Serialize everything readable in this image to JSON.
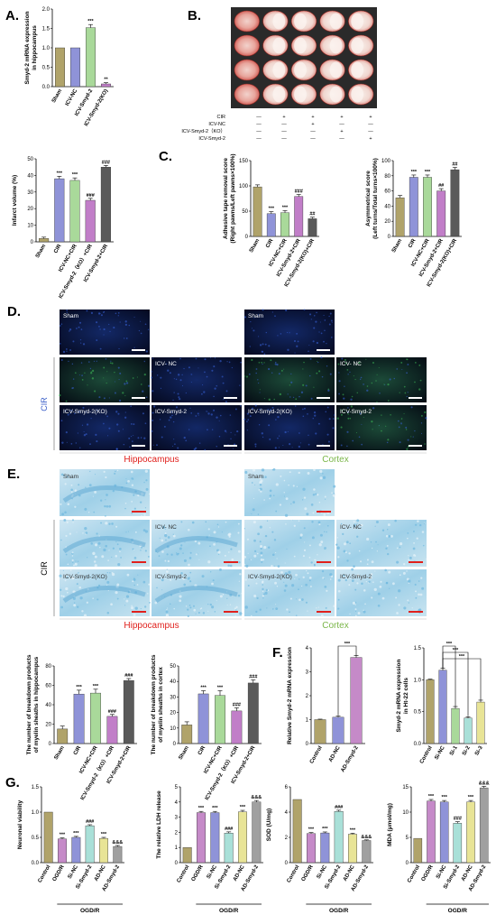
{
  "panels": {
    "A": {
      "letter": "A."
    },
    "B": {
      "letter": "B.",
      "treatment_rows": [
        "CIR",
        "ICV-NC",
        "ICV-Smyd-2（KO）",
        "ICV-Smyd-2"
      ],
      "treatment_marks": [
        [
          "—",
          "+",
          "+",
          "+",
          "+"
        ],
        [
          "—",
          "—",
          "+",
          "—",
          "—"
        ],
        [
          "—",
          "—",
          "—",
          "+",
          "—"
        ],
        [
          "—",
          "—",
          "—",
          "—",
          "+"
        ]
      ]
    },
    "C": {
      "letter": "C."
    },
    "D": {
      "letter": "D.",
      "labels": {
        "sham": "Sham",
        "cir": "CIR",
        "icv_nc": "ICV- NC",
        "icv_ko": "ICV-Smyd-2(KO)",
        "icv_smyd2": "ICV-Smyd-2"
      },
      "region_hippocampus": "Hippocampus",
      "region_cortex": "Cortex",
      "side_label": "CIR"
    },
    "E": {
      "letter": "E.",
      "labels": {
        "sham": "Sham",
        "cir": "CIR",
        "icv_nc": "ICV- NC",
        "icv_ko": "ICV-Smyd-2(KO)",
        "icv_smyd2": "ICV-Smyd-2"
      },
      "region_hippocampus": "Hippocampus",
      "region_cortex": "Cortex",
      "side_label": "CIR"
    },
    "F": {
      "letter": "F."
    },
    "G": {
      "letter": "G.",
      "group_label": "OGD/R"
    }
  },
  "colors": {
    "sham": "#b0a36a",
    "cir": "#8f93d8",
    "nc": "#a9d99a",
    "ko": "#c17ec8",
    "smyd": "#5a5a5a",
    "control": "#b0a36a",
    "ogdr": "#c58ac8",
    "sinc": "#8f93d8",
    "si": "#a9e0d8",
    "adnc": "#e8e496",
    "adsmyd": "#a0a0a0",
    "region_red": "#e0201c",
    "region_green": "#7ab648",
    "side_blue": "#3a5fc8"
  },
  "chart_data": [
    {
      "id": "A1",
      "type": "bar",
      "ylabel": "Smyd-2 mRNA expression in hippocampus",
      "categories": [
        "Sham",
        "ICV-NC",
        "ICV-Smyd-2",
        "ICV-Smyd-2(KO)"
      ],
      "values": [
        1.0,
        1.0,
        1.52,
        0.07
      ],
      "errors": [
        0,
        0,
        0.08,
        0.03
      ],
      "ylim": [
        0,
        2.0
      ],
      "yticks": [
        "0.0",
        "0.5",
        "1.0",
        "1.5",
        "2.0"
      ],
      "sig": [
        "",
        "",
        "***",
        "**"
      ],
      "colors": [
        "#b0a36a",
        "#8f93d8",
        "#a9d99a",
        "#c17ec8"
      ]
    },
    {
      "id": "B1",
      "type": "bar",
      "ylabel": "Infarct volume (%)",
      "categories": [
        "Sham",
        "CIR",
        "ICV-NC+CIR",
        "ICV-Smyd-2（KO）+CIR",
        "ICV-Smyd-2+CIR"
      ],
      "values": [
        2,
        38,
        37,
        25,
        45
      ],
      "errors": [
        0.8,
        1.5,
        1.5,
        1.2,
        1.0
      ],
      "ylim": [
        0,
        50
      ],
      "yticks": [
        "0",
        "10",
        "20",
        "30",
        "40",
        "50"
      ],
      "sig": [
        "",
        "***",
        "***",
        "###",
        "###"
      ],
      "colors": [
        "#b0a36a",
        "#8f93d8",
        "#a9d99a",
        "#c17ec8",
        "#5a5a5a"
      ]
    },
    {
      "id": "C1",
      "type": "bar",
      "ylabel": "Adhesive tape removal score (Right pawns/Left pawns×100%)",
      "categories": [
        "Sham",
        "CIR",
        "ICV-NC+CIR",
        "ICV-Smyd-2+CIR",
        "ICV-Smyd-2(KO)+CIR"
      ],
      "values": [
        98,
        45,
        47,
        79,
        35
      ],
      "errors": [
        4,
        4,
        4,
        4,
        3
      ],
      "ylim": [
        0,
        150
      ],
      "yticks": [
        "0",
        "50",
        "100",
        "150"
      ],
      "sig": [
        "",
        "***",
        "***",
        "###",
        "##"
      ],
      "colors": [
        "#b0a36a",
        "#8f93d8",
        "#a9d99a",
        "#c17ec8",
        "#5a5a5a"
      ]
    },
    {
      "id": "C2",
      "type": "bar",
      "ylabel": "Asymmetrical score (Left turns/Total turns×100%)",
      "categories": [
        "Sham",
        "CIR",
        "ICV-NC+CIR",
        "ICV-Smyd-2+CIR",
        "ICV-Smyd-2(KO)+CIR"
      ],
      "values": [
        51,
        78,
        78,
        60,
        88
      ],
      "errors": [
        3,
        3,
        3,
        3,
        3
      ],
      "ylim": [
        0,
        100
      ],
      "yticks": [
        "0",
        "20",
        "40",
        "60",
        "80",
        "100"
      ],
      "sig": [
        "",
        "***",
        "***",
        "##",
        "##"
      ],
      "colors": [
        "#b0a36a",
        "#8f93d8",
        "#a9d99a",
        "#c17ec8",
        "#5a5a5a"
      ]
    },
    {
      "id": "E1",
      "type": "bar",
      "ylabel": "The number of breakdown products of myelin sheaths in hippocampus",
      "categories": [
        "Sham",
        "CIR",
        "ICV-NC+CIR",
        "ICV-Smyd-2（KO）+CIR",
        "ICV-Smyd-2+CIR"
      ],
      "values": [
        15,
        51,
        52,
        28,
        65
      ],
      "errors": [
        3,
        4,
        4,
        2,
        2
      ],
      "ylim": [
        0,
        80
      ],
      "yticks": [
        "0",
        "20",
        "40",
        "60",
        "80"
      ],
      "sig": [
        "",
        "***",
        "***",
        "###",
        "###"
      ],
      "colors": [
        "#b0a36a",
        "#8f93d8",
        "#a9d99a",
        "#c17ec8",
        "#5a5a5a"
      ]
    },
    {
      "id": "E2",
      "type": "bar",
      "ylabel": "The number of breakdown products of myelin sheaths in cortex",
      "categories": [
        "Sham",
        "CIR",
        "ICV-NC+CIR",
        "ICV-Smyd-2（KO）+CIR",
        "ICV-Smyd-2+CIR"
      ],
      "values": [
        12,
        32,
        31,
        21,
        39
      ],
      "errors": [
        2,
        2,
        3,
        2,
        2
      ],
      "ylim": [
        0,
        50
      ],
      "yticks": [
        "0",
        "10",
        "20",
        "30",
        "40",
        "50"
      ],
      "sig": [
        "",
        "***",
        "***",
        "###",
        "###"
      ],
      "colors": [
        "#b0a36a",
        "#8f93d8",
        "#a9d99a",
        "#c17ec8",
        "#5a5a5a"
      ]
    },
    {
      "id": "F1",
      "type": "bar",
      "ylabel": "Relative Smyd-2 mRNA expression",
      "categories": [
        "Control",
        "AD-NC",
        "AD-Smyd-2"
      ],
      "values": [
        1.0,
        1.1,
        3.6
      ],
      "errors": [
        0.02,
        0.05,
        0.08
      ],
      "ylim": [
        0,
        4
      ],
      "yticks": [
        "0",
        "1",
        "2",
        "3",
        "4"
      ],
      "sig": [
        "",
        "",
        ""
      ],
      "brackets": [
        {
          "from": 1,
          "to": 2,
          "label": "***"
        }
      ],
      "colors": [
        "#b0a36a",
        "#8f93d8",
        "#c58ac8"
      ]
    },
    {
      "id": "F2",
      "type": "bar",
      "ylabel": "Smyd-2 mRNA expression in Ht-22 cells",
      "categories": [
        "Control",
        "Si-NC",
        "Si-1",
        "Si-2",
        "Si-3"
      ],
      "values": [
        1.0,
        1.15,
        0.55,
        0.4,
        0.65
      ],
      "errors": [
        0.01,
        0.03,
        0.03,
        0.02,
        0.03
      ],
      "ylim": [
        0,
        1.5
      ],
      "yticks": [
        "0.0",
        "0.5",
        "1.0",
        "1.5"
      ],
      "sig": [
        "",
        "",
        "",
        "",
        ""
      ],
      "brackets": [
        {
          "from": 1,
          "to": 2,
          "label": "***"
        },
        {
          "from": 1,
          "to": 3,
          "label": "***"
        },
        {
          "from": 1,
          "to": 4,
          "label": "***"
        }
      ],
      "colors": [
        "#b0a36a",
        "#8f93d8",
        "#a9d99a",
        "#a9e0d8",
        "#e8e496"
      ]
    },
    {
      "id": "G1",
      "type": "bar",
      "ylabel": "Neuronal viability",
      "categories": [
        "Control",
        "OGD/R",
        "Si-NC",
        "Si-Smyd-2",
        "AD-NC",
        "AD-Smyd-2"
      ],
      "values": [
        1.0,
        0.47,
        0.5,
        0.73,
        0.48,
        0.32
      ],
      "errors": [
        0,
        0.02,
        0.02,
        0.02,
        0.02,
        0.02
      ],
      "ylim": [
        0,
        1.5
      ],
      "yticks": [
        "0.0",
        "0.5",
        "1.0",
        "1.5"
      ],
      "sig": [
        "",
        "***",
        "***",
        "###",
        "***",
        "&&&"
      ],
      "colors": [
        "#b0a36a",
        "#c58ac8",
        "#8f93d8",
        "#a9e0d8",
        "#e8e496",
        "#a0a0a0"
      ]
    },
    {
      "id": "G2",
      "type": "bar",
      "ylabel": "The relative LDH release",
      "categories": [
        "Control",
        "OGD/R",
        "Si-NC",
        "Si-Smyd-2",
        "AD-NC",
        "AD-Smyd-2"
      ],
      "values": [
        1.0,
        3.3,
        3.3,
        1.95,
        3.35,
        4.0
      ],
      "errors": [
        0,
        0.08,
        0.08,
        0.08,
        0.1,
        0.1
      ],
      "ylim": [
        0,
        5
      ],
      "yticks": [
        "0",
        "1",
        "2",
        "3",
        "4",
        "5"
      ],
      "sig": [
        "",
        "***",
        "***",
        "###",
        "***",
        "&&&"
      ],
      "colors": [
        "#b0a36a",
        "#c58ac8",
        "#8f93d8",
        "#a9e0d8",
        "#e8e496",
        "#a0a0a0"
      ]
    },
    {
      "id": "G3",
      "type": "bar",
      "ylabel": "SOD (U/mg)",
      "categories": [
        "Control",
        "OGD/R",
        "Si-NC",
        "Si-Smyd-2",
        "AD-NC",
        "AD-Smyd-2"
      ],
      "values": [
        5.0,
        2.3,
        2.35,
        4.05,
        2.25,
        1.75
      ],
      "errors": [
        0,
        0.08,
        0.08,
        0.1,
        0.08,
        0.05
      ],
      "ylim": [
        0,
        6
      ],
      "yticks": [
        "0",
        "2",
        "4",
        "6"
      ],
      "sig": [
        "",
        "***",
        "***",
        "###",
        "***",
        "&&&"
      ],
      "colors": [
        "#b0a36a",
        "#c58ac8",
        "#8f93d8",
        "#a9e0d8",
        "#e8e496",
        "#a0a0a0"
      ]
    },
    {
      "id": "G4",
      "type": "bar",
      "ylabel": "MDA (μmol/mg)",
      "categories": [
        "Control",
        "OGD/R",
        "Si-NC",
        "Si-Smyd-2",
        "AD-NC",
        "AD-Smyd-2"
      ],
      "values": [
        4.8,
        12.2,
        12.0,
        7.8,
        12.0,
        14.8
      ],
      "errors": [
        0,
        0.3,
        0.3,
        0.3,
        0.3,
        0.3
      ],
      "ylim": [
        0,
        15
      ],
      "yticks": [
        "0",
        "5",
        "10",
        "15"
      ],
      "sig": [
        "",
        "***",
        "***",
        "###",
        "***",
        "&&&"
      ],
      "colors": [
        "#b0a36a",
        "#c58ac8",
        "#8f93d8",
        "#a9e0d8",
        "#e8e496",
        "#a0a0a0"
      ]
    }
  ]
}
